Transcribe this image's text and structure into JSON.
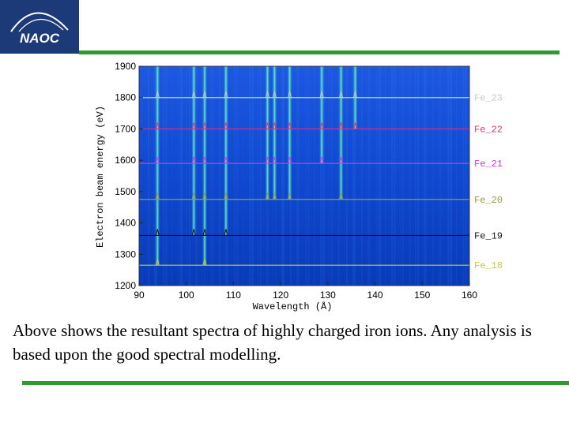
{
  "logo": {
    "text": "NAOC"
  },
  "colors": {
    "accent_green": "#2f9a2f",
    "logo_bg": "#1d3a78"
  },
  "caption": "Above shows the resultant spectra of highly charged iron ions. Any analysis is based upon the good spectral modelling.",
  "chart_data": {
    "type": "heatmap",
    "title": "",
    "xlabel": "Wavelength (Å)",
    "ylabel": "Electron beam energy (eV)",
    "xlim": [
      90,
      160
    ],
    "x_ticks": [
      90,
      100,
      110,
      120,
      130,
      140,
      150,
      160
    ],
    "y_tick_labels": [
      "1200",
      "1300",
      "1400",
      "1500",
      "1600",
      "1700",
      "1800",
      "1900"
    ],
    "ylim": [
      1200,
      1900
    ],
    "series": [
      {
        "name": "Fe_23",
        "energy_level": 1800,
        "color": "#c8c8c8"
      },
      {
        "name": "Fe_22",
        "energy_level": 1700,
        "color": "#e0307a"
      },
      {
        "name": "Fe_21",
        "energy_level": 1590,
        "color": "#e030e0"
      },
      {
        "name": "Fe_20",
        "energy_level": 1475,
        "color": "#9a9a40"
      },
      {
        "name": "Fe_19",
        "energy_level": 1360,
        "color": "#111111"
      },
      {
        "name": "Fe_18",
        "energy_level": 1265,
        "color": "#c8c840"
      }
    ],
    "emission_lines": [
      {
        "wavelength": 93.9,
        "energy_min": 1265,
        "energy_max": 1900
      },
      {
        "wavelength": 101.6,
        "energy_min": 1360,
        "energy_max": 1900
      },
      {
        "wavelength": 103.9,
        "energy_min": 1265,
        "energy_max": 1900
      },
      {
        "wavelength": 108.4,
        "energy_min": 1360,
        "energy_max": 1900
      },
      {
        "wavelength": 117.2,
        "energy_min": 1475,
        "energy_max": 1900
      },
      {
        "wavelength": 118.7,
        "energy_min": 1475,
        "energy_max": 1900
      },
      {
        "wavelength": 121.9,
        "energy_min": 1475,
        "energy_max": 1900
      },
      {
        "wavelength": 128.7,
        "energy_min": 1590,
        "energy_max": 1900
      },
      {
        "wavelength": 132.8,
        "energy_min": 1475,
        "energy_max": 1900
      },
      {
        "wavelength": 135.8,
        "energy_min": 1700,
        "energy_max": 1900
      }
    ]
  }
}
